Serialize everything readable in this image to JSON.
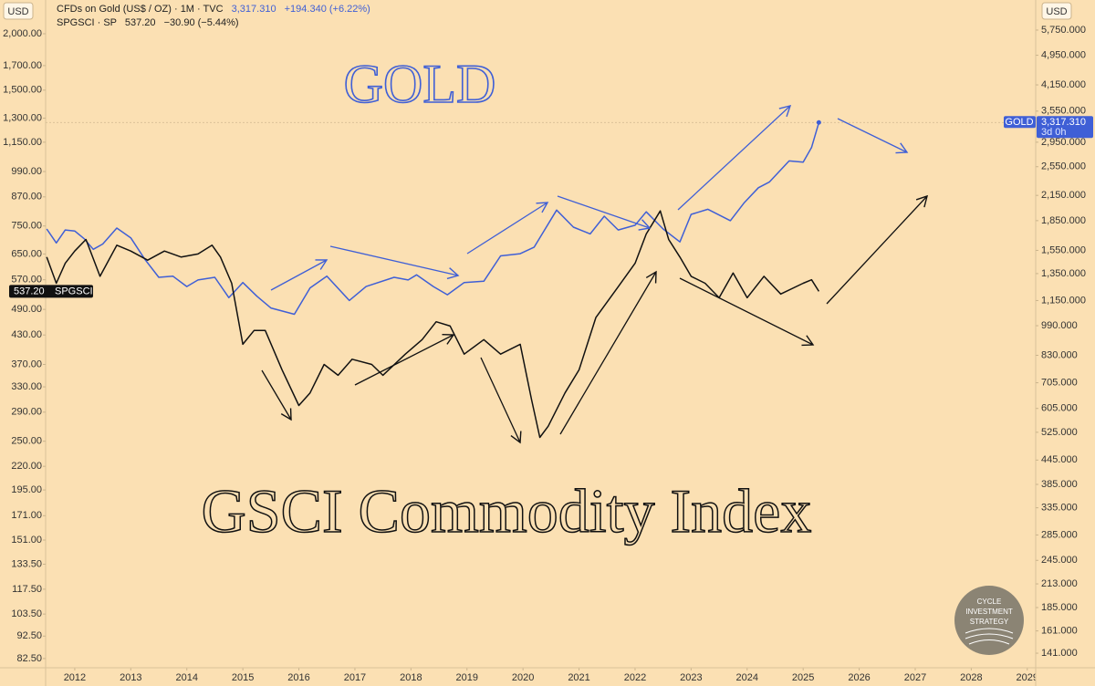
{
  "chart_data": {
    "type": "line",
    "log_scale": true,
    "grid": false,
    "annotations": {
      "gold": "GOLD",
      "gsci": "GSCI Commodity Index",
      "logo": [
        "CYCLE",
        "INVESTMENT",
        "STRATEGY"
      ]
    },
    "y_unit": "USD",
    "y2_unit": "USD",
    "xlim": [
      2011.48,
      2029.15
    ],
    "xticks": [
      2012,
      2013,
      2014,
      2015,
      2016,
      2017,
      2018,
      2019,
      2020,
      2021,
      2022,
      2023,
      2024,
      2025,
      2026,
      2027,
      2028,
      2029
    ],
    "ylim": [
      78.7,
      2376
    ],
    "yticks": [
      {
        "value": 2000,
        "label": "2,000.00"
      },
      {
        "value": 1700,
        "label": "1,700.00"
      },
      {
        "value": 1500,
        "label": "1,500.00"
      },
      {
        "value": 1300,
        "label": "1,300.00"
      },
      {
        "value": 1150,
        "label": "1,150.00"
      },
      {
        "value": 990,
        "label": "990.00"
      },
      {
        "value": 870,
        "label": "870.00"
      },
      {
        "value": 750,
        "label": "750.00"
      },
      {
        "value": 650,
        "label": "650.00"
      },
      {
        "value": 570,
        "label": "570.00"
      },
      {
        "value": 490,
        "label": "490.00"
      },
      {
        "value": 430,
        "label": "430.00"
      },
      {
        "value": 370,
        "label": "370.00"
      },
      {
        "value": 330,
        "label": "330.00"
      },
      {
        "value": 290,
        "label": "290.00"
      },
      {
        "value": 250,
        "label": "250.00"
      },
      {
        "value": 220,
        "label": "220.00"
      },
      {
        "value": 195,
        "label": "195.00"
      },
      {
        "value": 171,
        "label": "171.00"
      },
      {
        "value": 151,
        "label": "151.00"
      },
      {
        "value": 133.5,
        "label": "133.50"
      },
      {
        "value": 117.5,
        "label": "117.50"
      },
      {
        "value": 103.5,
        "label": "103.50"
      },
      {
        "value": 92.5,
        "label": "92.50"
      },
      {
        "value": 82.5,
        "label": "82.50"
      }
    ],
    "y2lim": [
      129.3,
      6877
    ],
    "y2ticks": [
      {
        "value": 5750,
        "label": "5,750.000"
      },
      {
        "value": 4950,
        "label": "4,950.000"
      },
      {
        "value": 4150,
        "label": "4,150.000"
      },
      {
        "value": 3550,
        "label": "3,550.000"
      },
      {
        "value": 2950,
        "label": "2,950.000"
      },
      {
        "value": 2550,
        "label": "2,550.000"
      },
      {
        "value": 2150,
        "label": "2,150.000"
      },
      {
        "value": 1850,
        "label": "1,850.000"
      },
      {
        "value": 1550,
        "label": "1,550.000"
      },
      {
        "value": 1350,
        "label": "1,350.000"
      },
      {
        "value": 1150,
        "label": "1,150.000"
      },
      {
        "value": 990,
        "label": "990.000"
      },
      {
        "value": 830,
        "label": "830.000"
      },
      {
        "value": 705,
        "label": "705.000"
      },
      {
        "value": 605,
        "label": "605.000"
      },
      {
        "value": 525,
        "label": "525.000"
      },
      {
        "value": 445,
        "label": "445.000"
      },
      {
        "value": 385,
        "label": "385.000"
      },
      {
        "value": 335,
        "label": "335.000"
      },
      {
        "value": 285,
        "label": "285.000"
      },
      {
        "value": 245,
        "label": "245.000"
      },
      {
        "value": 213,
        "label": "213.000"
      },
      {
        "value": 185,
        "label": "185.000"
      },
      {
        "value": 161,
        "label": "161.000"
      },
      {
        "value": 141,
        "label": "141.000"
      }
    ],
    "series": [
      {
        "name": "CFDs on Gold (US$ / OZ) · 1M · TVC",
        "color": "#3f5fd6",
        "axis": "y2",
        "last_label": "3,317.310",
        "change_label": "+194.340 (+6.22%)",
        "tag": {
          "symbol": "GOLD",
          "countdown": "3d 0h"
        },
        "x": [
          2011.5,
          2011.67,
          2011.83,
          2012.0,
          2012.17,
          2012.33,
          2012.5,
          2012.75,
          2013.0,
          2013.25,
          2013.5,
          2013.75,
          2014.0,
          2014.2,
          2014.5,
          2014.75,
          2015.0,
          2015.25,
          2015.5,
          2015.92,
          2016.2,
          2016.5,
          2016.9,
          2017.2,
          2017.7,
          2017.95,
          2018.1,
          2018.4,
          2018.65,
          2018.95,
          2019.3,
          2019.6,
          2019.95,
          2020.2,
          2020.6,
          2020.9,
          2021.2,
          2021.45,
          2021.7,
          2022.0,
          2022.2,
          2022.5,
          2022.8,
          2023.0,
          2023.3,
          2023.7,
          2023.95,
          2024.2,
          2024.4,
          2024.75,
          2025.0,
          2025.15,
          2025.28
        ],
        "values": [
          1760,
          1620,
          1750,
          1740,
          1660,
          1560,
          1610,
          1770,
          1670,
          1470,
          1320,
          1330,
          1250,
          1300,
          1320,
          1170,
          1280,
          1180,
          1100,
          1060,
          1240,
          1330,
          1150,
          1250,
          1320,
          1300,
          1340,
          1250,
          1190,
          1280,
          1290,
          1500,
          1520,
          1580,
          1970,
          1780,
          1710,
          1900,
          1750,
          1800,
          1950,
          1760,
          1630,
          1920,
          1980,
          1850,
          2060,
          2250,
          2330,
          2640,
          2620,
          2860,
          3317.31
        ]
      },
      {
        "name": "SPGSCI · SP",
        "color": "#111111",
        "axis": "y",
        "last_label": "537.20",
        "change_label": "−30.90 (−5.44%)",
        "tag": {
          "symbol": "SPGSCI"
        },
        "x": [
          2011.5,
          2011.67,
          2011.83,
          2012.0,
          2012.2,
          2012.45,
          2012.75,
          2013.0,
          2013.3,
          2013.6,
          2013.9,
          2014.2,
          2014.45,
          2014.6,
          2014.8,
          2015.0,
          2015.2,
          2015.4,
          2015.7,
          2016.0,
          2016.2,
          2016.45,
          2016.7,
          2016.95,
          2017.3,
          2017.5,
          2017.9,
          2018.2,
          2018.45,
          2018.7,
          2018.95,
          2019.3,
          2019.6,
          2019.95,
          2020.15,
          2020.3,
          2020.45,
          2020.75,
          2021.0,
          2021.3,
          2021.7,
          2022.0,
          2022.2,
          2022.45,
          2022.6,
          2022.8,
          2023.0,
          2023.25,
          2023.5,
          2023.75,
          2024.0,
          2024.3,
          2024.6,
          2025.0,
          2025.15,
          2025.28
        ],
        "values": [
          640,
          560,
          620,
          660,
          700,
          580,
          680,
          660,
          630,
          660,
          640,
          650,
          680,
          640,
          560,
          410,
          440,
          440,
          360,
          300,
          320,
          370,
          350,
          380,
          370,
          350,
          390,
          420,
          460,
          450,
          390,
          420,
          390,
          410,
          310,
          255,
          270,
          320,
          360,
          470,
          550,
          620,
          720,
          810,
          700,
          640,
          580,
          560,
          520,
          590,
          520,
          580,
          530,
          560,
          570,
          537.2
        ]
      }
    ]
  }
}
